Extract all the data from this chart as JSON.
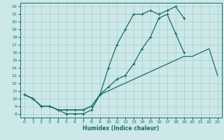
{
  "xlabel": "Humidex (Indice chaleur)",
  "bg_color": "#cce8e8",
  "line_color": "#1a6b6b",
  "grid_color": "#aacccc",
  "xlim": [
    -0.5,
    23.5
  ],
  "ylim": [
    7.5,
    22.5
  ],
  "xticks": [
    0,
    1,
    2,
    3,
    4,
    5,
    6,
    7,
    8,
    9,
    10,
    11,
    12,
    13,
    14,
    15,
    16,
    17,
    18,
    19,
    20,
    21,
    22,
    23
  ],
  "yticks": [
    8,
    9,
    10,
    11,
    12,
    13,
    14,
    15,
    16,
    17,
    18,
    19,
    20,
    21,
    22
  ],
  "series1_x": [
    0,
    1,
    2,
    3,
    4,
    5,
    6,
    7,
    8,
    9,
    10,
    11,
    12,
    13,
    14,
    15,
    16,
    17,
    18,
    19,
    20,
    21,
    22,
    23
  ],
  "series1_y": [
    10.5,
    10.0,
    9.0,
    9.0,
    8.5,
    8.0,
    8.0,
    8.0,
    8.5,
    10.5,
    14.0,
    17.0,
    19.0,
    21.0,
    21.0,
    21.5,
    21.0,
    21.5,
    22.0,
    20.5,
    null,
    null,
    null,
    null
  ],
  "series2_x": [
    0,
    1,
    2,
    3,
    4,
    5,
    6,
    7,
    8,
    9,
    10,
    11,
    12,
    13,
    14,
    15,
    16,
    17,
    18,
    19,
    20,
    21,
    22,
    23
  ],
  "series2_y": [
    10.5,
    10.0,
    9.0,
    9.0,
    8.5,
    8.5,
    8.5,
    8.5,
    9.0,
    10.5,
    11.5,
    12.5,
    13.0,
    14.5,
    16.5,
    18.0,
    20.5,
    21.0,
    18.5,
    16.0,
    null,
    null,
    null,
    null
  ],
  "series3_x": [
    0,
    1,
    2,
    3,
    4,
    5,
    6,
    7,
    8,
    9,
    10,
    11,
    12,
    13,
    14,
    15,
    16,
    17,
    18,
    19,
    20,
    21,
    22,
    23
  ],
  "series3_y": [
    10.5,
    10.0,
    9.0,
    9.0,
    8.5,
    8.5,
    8.5,
    8.5,
    9.0,
    10.5,
    11.0,
    11.5,
    12.0,
    12.5,
    13.0,
    13.5,
    14.0,
    14.5,
    15.0,
    15.5,
    15.5,
    16.0,
    16.5,
    13.0
  ]
}
